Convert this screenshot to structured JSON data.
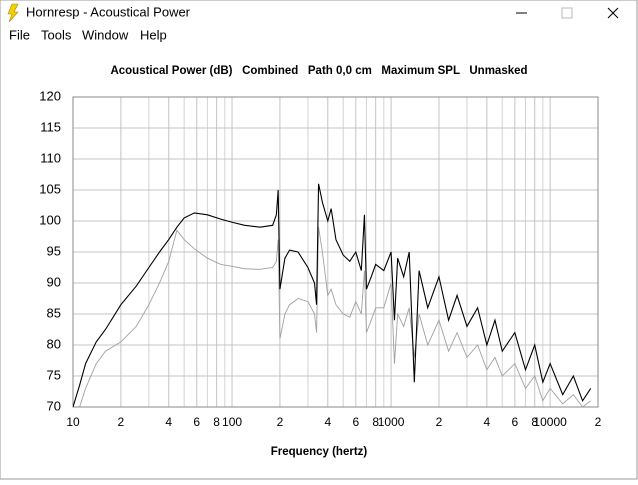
{
  "window": {
    "title": "Hornresp - Acoustical Power"
  },
  "menu": [
    "File",
    "Tools",
    "Window",
    "Help"
  ],
  "chart_data": {
    "type": "line",
    "title": "Acoustical Power (dB)   Combined   Path 0,0 cm   Maximum SPL   Unmasked",
    "x_label": "Frequency (hertz)",
    "xscale": "log",
    "grid": true,
    "xlim": [
      10,
      20000
    ],
    "ylim": [
      70,
      120
    ],
    "yticks": [
      70,
      75,
      80,
      85,
      90,
      95,
      100,
      105,
      110,
      115,
      120
    ],
    "xticks": [
      10,
      {
        "value": 20,
        "label": "2"
      },
      {
        "value": 40,
        "label": "4"
      },
      {
        "value": 60,
        "label": "6"
      },
      {
        "value": 80,
        "label": "8"
      },
      100,
      {
        "value": 200,
        "label": "2"
      },
      {
        "value": 400,
        "label": "4"
      },
      {
        "value": 600,
        "label": "6"
      },
      {
        "value": 800,
        "label": "8"
      },
      1000,
      {
        "value": 2000,
        "label": "2"
      },
      {
        "value": 4000,
        "label": "4"
      },
      {
        "value": 6000,
        "label": "6"
      },
      {
        "value": 8000,
        "label": "8"
      },
      10000,
      {
        "value": 20000,
        "label": "2"
      }
    ],
    "x_minor_ticks": [
      30,
      50,
      70,
      90,
      300,
      500,
      700,
      900,
      3000,
      5000,
      7000,
      9000
    ],
    "x": [
      10,
      11,
      12,
      14,
      16,
      20,
      25,
      30,
      35,
      40,
      45,
      50,
      58,
      70,
      85,
      100,
      120,
      150,
      180,
      190,
      195,
      200,
      215,
      230,
      260,
      300,
      330,
      340,
      350,
      370,
      400,
      420,
      450,
      500,
      550,
      600,
      650,
      680,
      700,
      750,
      800,
      900,
      1000,
      1050,
      1100,
      1200,
      1300,
      1400,
      1500,
      1700,
      2000,
      2300,
      2600,
      3000,
      3500,
      4000,
      4500,
      5000,
      6000,
      7000,
      8000,
      9000,
      10000,
      12000,
      14000,
      16000,
      18000
    ],
    "series": [
      {
        "color": "#000000",
        "values": [
          70,
          73.5,
          77,
          80.5,
          82.5,
          86.5,
          89.5,
          92.5,
          95,
          97,
          99,
          100.5,
          101.3,
          101,
          100.3,
          99.8,
          99.3,
          99,
          99.3,
          101,
          105,
          89,
          94,
          95.3,
          95,
          92.5,
          90,
          86.5,
          106,
          103,
          100,
          102,
          97,
          94.5,
          93.5,
          95,
          92,
          101,
          89,
          91,
          93,
          92,
          95,
          84,
          94,
          91,
          95,
          74,
          92,
          86,
          91,
          84,
          88,
          83,
          86,
          80,
          84,
          79,
          82,
          76,
          80,
          74,
          77,
          72,
          75,
          71,
          73
        ]
      },
      {
        "color": "#a0a0a0",
        "values": [
          null,
          70,
          73,
          77,
          79,
          80.5,
          83,
          86.5,
          90,
          93.5,
          98.5,
          97,
          95.5,
          94,
          93,
          92.7,
          92.3,
          92.2,
          92.5,
          93.5,
          97,
          81,
          85,
          86.5,
          87.5,
          87,
          85,
          82,
          99,
          95,
          88,
          89,
          86.5,
          85,
          84.5,
          87,
          85,
          92,
          82,
          84,
          86,
          86,
          90,
          77,
          85,
          83,
          86,
          78,
          85,
          80,
          84,
          79,
          82,
          78,
          80,
          76,
          78,
          75,
          77,
          73,
          75,
          71,
          73,
          70.5,
          72,
          70,
          71
        ]
      }
    ]
  }
}
